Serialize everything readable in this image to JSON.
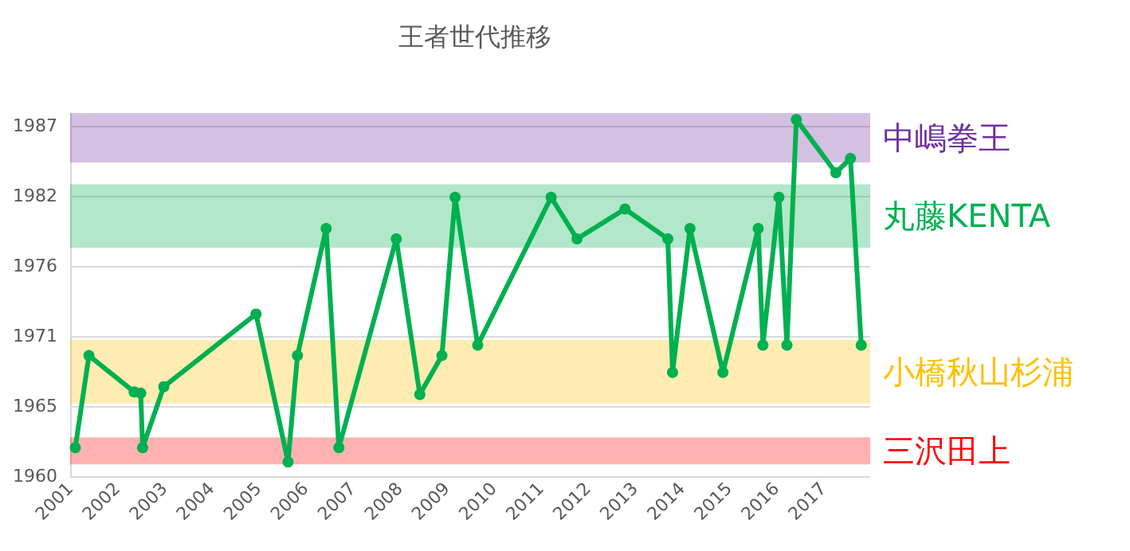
{
  "chart_data": {
    "type": "line",
    "title": "王者世代推移",
    "x": [
      2001.11,
      2001.4,
      2002.36,
      2002.5,
      2002.54,
      2002.99,
      2004.95,
      2005.63,
      2005.83,
      2006.44,
      2006.71,
      2007.93,
      2008.43,
      2008.9,
      2009.18,
      2009.66,
      2011.22,
      2011.77,
      2012.79,
      2013.7,
      2013.8,
      2014.17,
      2014.87,
      2015.62,
      2015.72,
      2016.06,
      2016.23,
      2016.43,
      2017.27,
      2017.58,
      2017.81
    ],
    "series": [
      {
        "color": "#00b050",
        "values": [
          1962.2,
          1969.3,
          1966.5,
          1966.4,
          1962.2,
          1966.9,
          1972.5,
          1961.1,
          1969.3,
          1979.1,
          1962.2,
          1978.3,
          1966.3,
          1969.3,
          1981.5,
          1970.1,
          1981.5,
          1978.3,
          1980.6,
          1978.3,
          1968.0,
          1979.1,
          1968.0,
          1979.1,
          1970.1,
          1981.5,
          1970.1,
          1987.5,
          1983.4,
          1984.5,
          1970.1
        ]
      }
    ],
    "xlim": [
      2001,
      2018
    ],
    "xticks": [
      2001,
      2002,
      2003,
      2004,
      2005,
      2006,
      2007,
      2008,
      2009,
      2010,
      2011,
      2012,
      2013,
      2014,
      2015,
      2016,
      2017
    ],
    "ylim": [
      1960,
      1988
    ],
    "yticks": [
      1960,
      {
        "value": 1965.4,
        "label": "1965"
      },
      {
        "value": 1970.8,
        "label": "1971"
      },
      {
        "value": 1976.2,
        "label": "1976"
      },
      {
        "value": 1981.6,
        "label": "1982"
      },
      1987
    ],
    "bands": [
      {
        "axis": "y",
        "from": 1984.2,
        "to": 1988,
        "label": "中嶋拳王",
        "color": "#7030a0"
      },
      {
        "axis": "y",
        "from": 1977.6,
        "to": 1982.5,
        "label": "丸藤KENTA",
        "color": "#00b050"
      },
      {
        "axis": "y",
        "from": 1965.6,
        "to": 1970.5,
        "label": "小橋秋山杉浦",
        "color": "#ffc000"
      },
      {
        "axis": "y",
        "from": 1960.9,
        "to": 1963.0,
        "label": "三沢田上",
        "color": "#ff0000"
      }
    ],
    "grid": "y",
    "marker": "circle",
    "line_style": "solid"
  }
}
